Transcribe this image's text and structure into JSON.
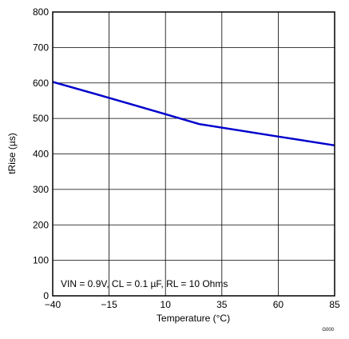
{
  "chart_data": {
    "type": "line",
    "title": "",
    "xlabel": "Temperature (°C)",
    "ylabel": "tRise (µs)",
    "xlim": [
      -40,
      85
    ],
    "ylim": [
      0,
      800
    ],
    "x_ticks": [
      "−40",
      "−15",
      "10",
      "35",
      "60",
      "85"
    ],
    "y_ticks": [
      "0",
      "100",
      "200",
      "300",
      "400",
      "500",
      "600",
      "700",
      "800"
    ],
    "grid": true,
    "series": [
      {
        "color": "#0000cc",
        "x": [
          -40,
          -15,
          10,
          25,
          60,
          85
        ],
        "y": [
          603,
          558,
          512,
          484,
          449,
          424
        ]
      }
    ],
    "annotation": "VIN = 0.9V, CL = 0.1 µF, RL = 10 Ohms",
    "figure_code": "G000"
  }
}
